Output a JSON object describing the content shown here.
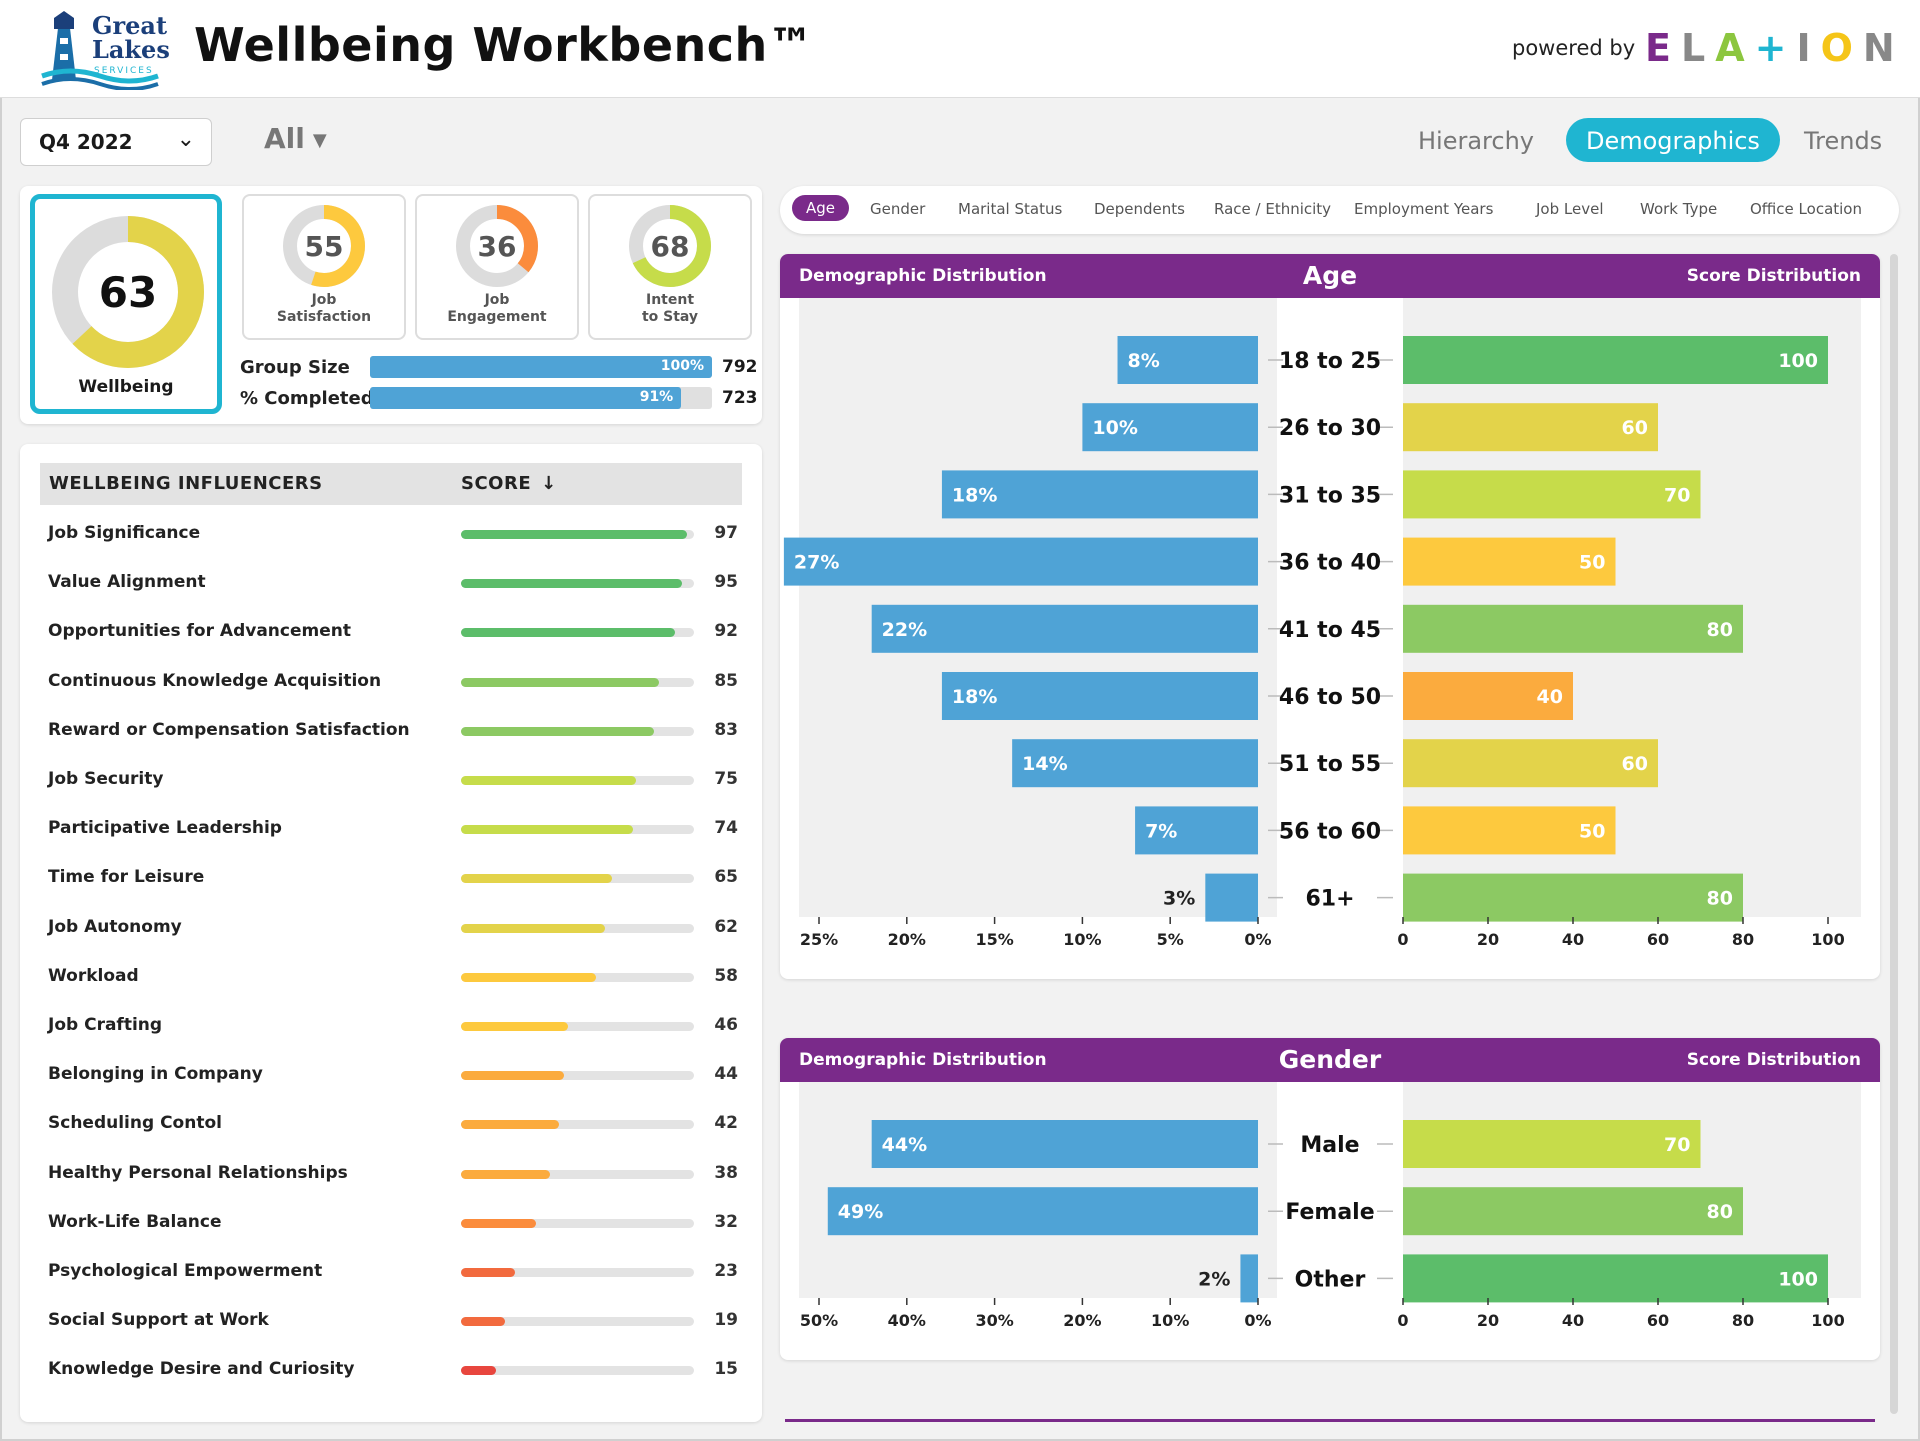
{
  "header": {
    "logo_line1": "Great",
    "logo_line2": "Lakes",
    "logo_line3": "SERVICES",
    "title": "Wellbeing Workbench™",
    "powered_by": "powered by",
    "brand_letters": [
      "E",
      "L",
      "A",
      "+",
      "I",
      "O",
      "N"
    ],
    "brand_colors": [
      "#7a2a8a",
      "#888888",
      "#8cc63f",
      "#1fb5d1",
      "#888888",
      "#f5c518",
      "#888888"
    ]
  },
  "toolbar": {
    "quarter": "Q4 2022",
    "filter": "All",
    "tabs": [
      "Hierarchy",
      "Demographics",
      "Trends"
    ],
    "active_tab": "Demographics"
  },
  "summary": {
    "wellbeing": {
      "value": 63,
      "label": "Wellbeing",
      "color": "#e3d34a"
    },
    "kpis": [
      {
        "value": 55,
        "label_1": "Job",
        "label_2": "Satisfaction",
        "color": "#fdc93e"
      },
      {
        "value": 36,
        "label_1": "Job",
        "label_2": "Engagement",
        "color": "#fb8c3c"
      },
      {
        "value": 68,
        "label_1": "Intent",
        "label_2": "to Stay",
        "color": "#c6dc4a"
      }
    ],
    "group_size": {
      "label": "Group Size",
      "percent": 100,
      "percent_text": "100%",
      "value": "792"
    },
    "completed": {
      "label": "% Completed",
      "percent": 91,
      "percent_text": "91%",
      "value": "723"
    }
  },
  "influencers": {
    "header_name": "WELLBEING INFLUENCERS",
    "header_score": "SCORE",
    "items": [
      {
        "name": "Job Significance",
        "score": 97,
        "color": "#5cbd6a"
      },
      {
        "name": "Value Alignment",
        "score": 95,
        "color": "#5cbd6a"
      },
      {
        "name": "Opportunities for Advancement",
        "score": 92,
        "color": "#5cbd6a"
      },
      {
        "name": "Continuous Knowledge Acquisition",
        "score": 85,
        "color": "#8cc963"
      },
      {
        "name": "Reward or Compensation Satisfaction",
        "score": 83,
        "color": "#8cc963"
      },
      {
        "name": "Job Security",
        "score": 75,
        "color": "#c6dc4a"
      },
      {
        "name": "Participative Leadership",
        "score": 74,
        "color": "#c6dc4a"
      },
      {
        "name": "Time for Leisure",
        "score": 65,
        "color": "#e3d34a"
      },
      {
        "name": "Job Autonomy",
        "score": 62,
        "color": "#e3d34a"
      },
      {
        "name": "Workload",
        "score": 58,
        "color": "#fdc93e"
      },
      {
        "name": "Job Crafting",
        "score": 46,
        "color": "#fdc93e"
      },
      {
        "name": "Belonging in Company",
        "score": 44,
        "color": "#fbab3e"
      },
      {
        "name": "Scheduling Contol",
        "score": 42,
        "color": "#fbab3e"
      },
      {
        "name": "Healthy Personal Relationships",
        "score": 38,
        "color": "#fbab3e"
      },
      {
        "name": "Work-Life Balance",
        "score": 32,
        "color": "#fb8c3c"
      },
      {
        "name": "Psychological Empowerment",
        "score": 23,
        "color": "#f26a3e"
      },
      {
        "name": "Social Support at Work",
        "score": 19,
        "color": "#f26a3e"
      },
      {
        "name": "Knowledge Desire and Curiosity",
        "score": 15,
        "color": "#e8463e"
      }
    ]
  },
  "demographic_tabs": {
    "items": [
      "Age",
      "Gender",
      "Marital Status",
      "Dependents",
      "Race / Ethnicity",
      "Employment Years",
      "Job Level",
      "Work Type",
      "Office Location"
    ],
    "active": "Age"
  },
  "colors": {
    "accent_purple": "#7a2a8a",
    "accent_teal": "#1fb5d1",
    "distribution_blue": "#4fa3d6"
  },
  "chart_data": [
    {
      "type": "bar",
      "title": "Age",
      "left_title": "Demographic Distribution",
      "right_title": "Score Distribution",
      "categories": [
        "18 to 25",
        "26 to 30",
        "31 to 35",
        "36 to 40",
        "41 to 45",
        "46 to 50",
        "51 to 55",
        "56 to 60",
        "61+"
      ],
      "series": [
        {
          "name": "Demographic Distribution",
          "values": [
            8,
            10,
            18,
            27,
            22,
            18,
            14,
            7,
            3
          ],
          "labels": [
            "8%",
            "10%",
            "18%",
            "27%",
            "22%",
            "18%",
            "14%",
            "7%",
            "3%"
          ]
        },
        {
          "name": "Score Distribution",
          "values": [
            100,
            60,
            70,
            50,
            80,
            40,
            60,
            50,
            80
          ]
        }
      ],
      "score_colors": [
        "#5cbd6a",
        "#e3d34a",
        "#c6dc4a",
        "#fdc93e",
        "#8cc963",
        "#fbab3e",
        "#e3d34a",
        "#fdc93e",
        "#8cc963"
      ],
      "left_ticks": [
        "25%",
        "20%",
        "15%",
        "10%",
        "5%",
        "0%"
      ],
      "left_xlim": [
        0,
        25
      ],
      "right_ticks": [
        "0",
        "20",
        "40",
        "60",
        "80",
        "100"
      ],
      "right_xlim": [
        0,
        100
      ]
    },
    {
      "type": "bar",
      "title": "Gender",
      "left_title": "Demographic Distribution",
      "right_title": "Score Distribution",
      "categories": [
        "Male",
        "Female",
        "Other"
      ],
      "series": [
        {
          "name": "Demographic Distribution",
          "values": [
            44,
            49,
            2
          ],
          "labels": [
            "44%",
            "49%",
            "2%"
          ]
        },
        {
          "name": "Score Distribution",
          "values": [
            70,
            80,
            100
          ]
        }
      ],
      "score_colors": [
        "#c6dc4a",
        "#8cc963",
        "#5cbd6a"
      ],
      "left_ticks": [
        "50%",
        "40%",
        "30%",
        "20%",
        "10%",
        "0%"
      ],
      "left_xlim": [
        0,
        50
      ],
      "right_ticks": [
        "0",
        "20",
        "40",
        "60",
        "80",
        "100"
      ],
      "right_xlim": [
        0,
        100
      ]
    }
  ]
}
